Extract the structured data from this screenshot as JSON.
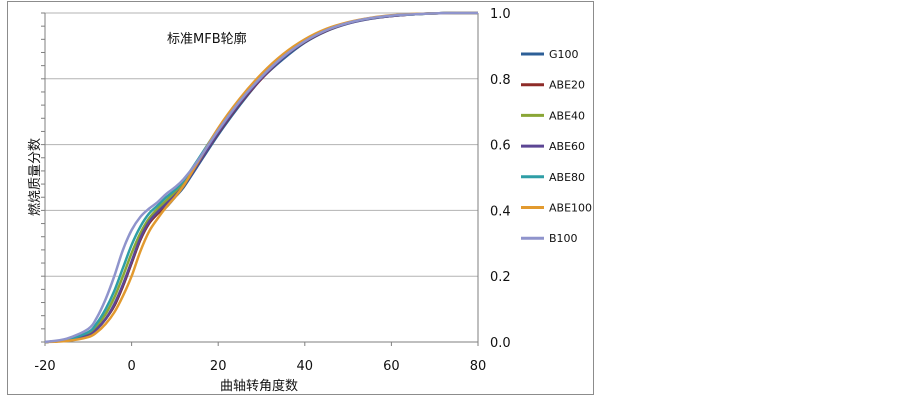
{
  "chart_data": {
    "type": "line",
    "title": "标准MFB轮廓",
    "xlabel": "曲轴转角度数",
    "ylabel": "燃烧质量分数",
    "xlim": [
      -20,
      80
    ],
    "ylim": [
      0,
      1
    ],
    "xticks": [
      "-20",
      "0",
      "20",
      "40",
      "60",
      "80"
    ],
    "yticks": [
      "0.0",
      "0.2",
      "0.4",
      "0.6",
      "0.8",
      "1.0"
    ],
    "grid": "horizontal",
    "legend_position": "right",
    "x": [
      -20,
      -15,
      -10,
      -8,
      -6,
      -4,
      -2,
      0,
      2,
      4,
      6,
      8,
      10,
      12,
      15,
      20,
      25,
      30,
      35,
      40,
      45,
      50,
      55,
      60,
      65,
      70,
      75,
      80
    ],
    "series": [
      {
        "name": "G100",
        "color": "#2d5f97",
        "values": [
          0,
          0.005,
          0.02,
          0.04,
          0.07,
          0.11,
          0.17,
          0.24,
          0.31,
          0.36,
          0.39,
          0.41,
          0.44,
          0.47,
          0.53,
          0.63,
          0.72,
          0.8,
          0.86,
          0.91,
          0.945,
          0.968,
          0.982,
          0.991,
          0.996,
          0.999,
          1.0,
          1.0
        ]
      },
      {
        "name": "ABE20",
        "color": "#8e2b28",
        "values": [
          0,
          0.005,
          0.02,
          0.04,
          0.07,
          0.11,
          0.17,
          0.24,
          0.31,
          0.36,
          0.39,
          0.42,
          0.445,
          0.475,
          0.535,
          0.635,
          0.725,
          0.8,
          0.865,
          0.912,
          0.946,
          0.969,
          0.983,
          0.991,
          0.996,
          0.999,
          1.0,
          1.0
        ]
      },
      {
        "name": "ABE40",
        "color": "#8aa636",
        "values": [
          0,
          0.006,
          0.025,
          0.05,
          0.085,
          0.135,
          0.2,
          0.27,
          0.33,
          0.375,
          0.405,
          0.43,
          0.455,
          0.48,
          0.54,
          0.64,
          0.73,
          0.805,
          0.868,
          0.915,
          0.948,
          0.97,
          0.984,
          0.992,
          0.996,
          0.999,
          1.0,
          1.0
        ]
      },
      {
        "name": "ABE60",
        "color": "#5c4694",
        "values": [
          0,
          0.005,
          0.02,
          0.04,
          0.07,
          0.115,
          0.175,
          0.245,
          0.315,
          0.365,
          0.395,
          0.42,
          0.445,
          0.475,
          0.535,
          0.637,
          0.727,
          0.802,
          0.865,
          0.913,
          0.947,
          0.969,
          0.983,
          0.991,
          0.996,
          0.999,
          1.0,
          1.0
        ]
      },
      {
        "name": "ABE80",
        "color": "#2e9ea6",
        "values": [
          0,
          0.007,
          0.03,
          0.058,
          0.1,
          0.155,
          0.225,
          0.295,
          0.35,
          0.39,
          0.415,
          0.44,
          0.462,
          0.49,
          0.548,
          0.648,
          0.736,
          0.81,
          0.871,
          0.917,
          0.95,
          0.971,
          0.984,
          0.992,
          0.996,
          0.999,
          1.0,
          1.0
        ]
      },
      {
        "name": "ABE100",
        "color": "#e29a2f",
        "values": [
          0,
          0.003,
          0.015,
          0.03,
          0.055,
          0.09,
          0.14,
          0.2,
          0.275,
          0.335,
          0.375,
          0.41,
          0.44,
          0.475,
          0.54,
          0.65,
          0.74,
          0.815,
          0.875,
          0.92,
          0.952,
          0.972,
          0.985,
          0.993,
          0.997,
          0.999,
          1.0,
          1.0
        ]
      },
      {
        "name": "B100",
        "color": "#8f94cc",
        "values": [
          0,
          0.01,
          0.04,
          0.075,
          0.13,
          0.2,
          0.28,
          0.34,
          0.38,
          0.405,
          0.425,
          0.45,
          0.47,
          0.495,
          0.545,
          0.643,
          0.732,
          0.806,
          0.867,
          0.914,
          0.948,
          0.97,
          0.984,
          0.992,
          0.996,
          0.999,
          1.0,
          1.0
        ]
      }
    ]
  }
}
